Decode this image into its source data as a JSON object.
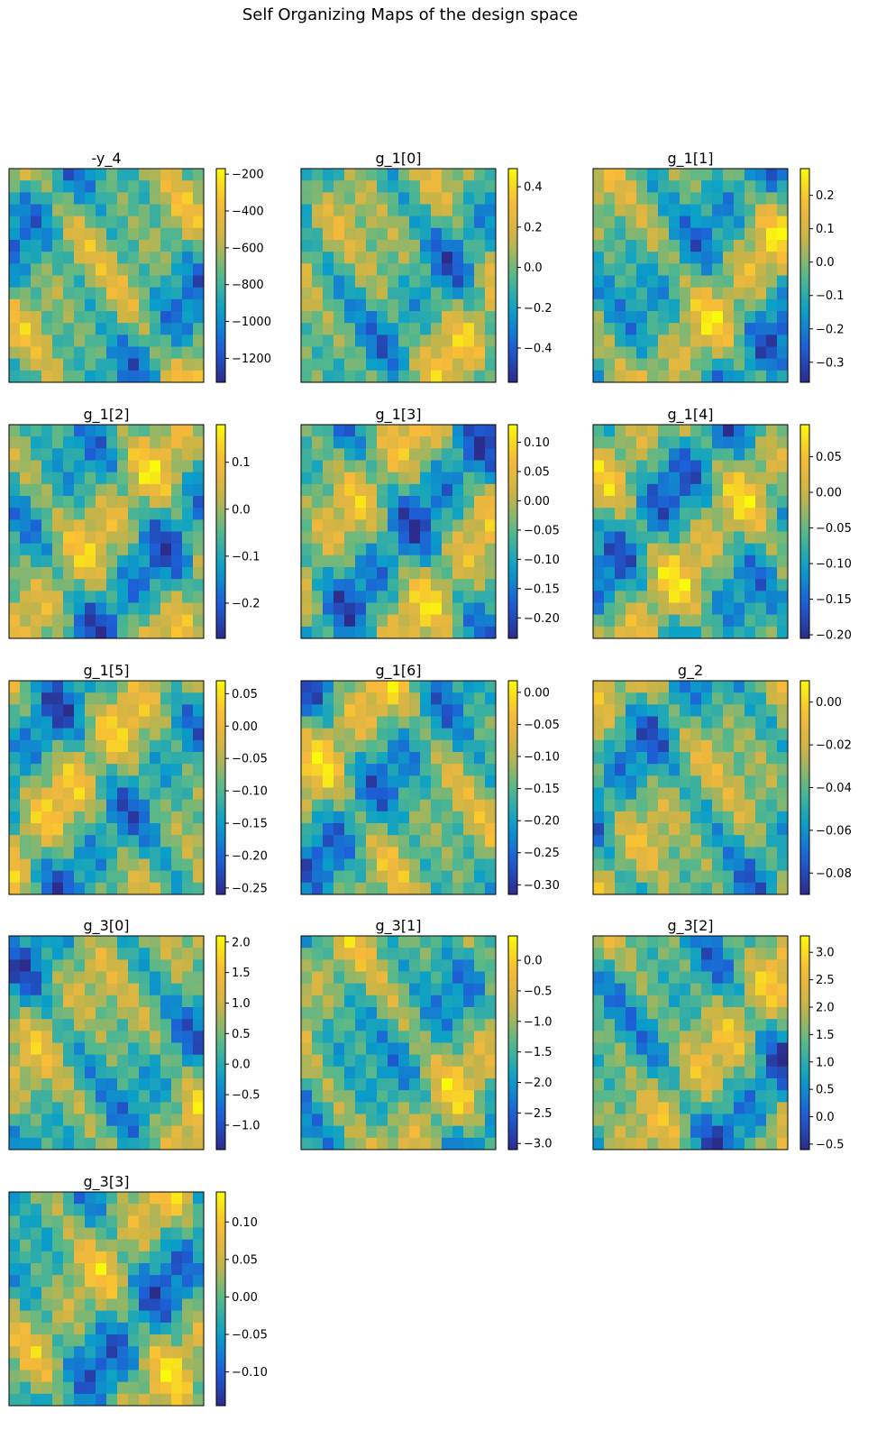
{
  "figure": {
    "title": "Self Organizing Maps of the design space"
  },
  "colormap": [
    "#2c2c8c",
    "#1d5fd6",
    "#0aa0c8",
    "#57b88a",
    "#c8b448",
    "#f7b93a",
    "#fafa0a"
  ],
  "chart_data": [
    {
      "type": "heatmap",
      "title": "-y_4",
      "grid": [
        18,
        18
      ],
      "range": [
        -1330,
        -170
      ],
      "ticks": [
        "-200",
        "-400",
        "-600",
        "-800",
        "-1000",
        "-1200"
      ],
      "tick_values": [
        -200,
        -400,
        -600,
        -800,
        -1000,
        -1200
      ]
    },
    {
      "type": "heatmap",
      "title": "g_1[0]",
      "grid": [
        18,
        18
      ],
      "range": [
        -0.57,
        0.49
      ],
      "ticks": [
        "0.4",
        "0.2",
        "0.0",
        "-0.2",
        "-0.4"
      ],
      "tick_values": [
        0.4,
        0.2,
        0.0,
        -0.2,
        -0.4
      ]
    },
    {
      "type": "heatmap",
      "title": "g_1[1]",
      "grid": [
        18,
        18
      ],
      "range": [
        -0.36,
        0.28
      ],
      "ticks": [
        "0.2",
        "0.1",
        "0.0",
        "-0.1",
        "-0.2",
        "-0.3"
      ],
      "tick_values": [
        0.2,
        0.1,
        0.0,
        -0.1,
        -0.2,
        -0.3
      ]
    },
    {
      "type": "heatmap",
      "title": "g_1[2]",
      "grid": [
        18,
        18
      ],
      "range": [
        -0.275,
        0.18
      ],
      "ticks": [
        "0.1",
        "0.0",
        "-0.1",
        "-0.2"
      ],
      "tick_values": [
        0.1,
        0.0,
        -0.1,
        -0.2
      ]
    },
    {
      "type": "heatmap",
      "title": "g_1[3]",
      "grid": [
        18,
        18
      ],
      "range": [
        -0.235,
        0.13
      ],
      "ticks": [
        "0.10",
        "0.05",
        "0.00",
        "-0.05",
        "-0.10",
        "-0.15",
        "-0.20"
      ],
      "tick_values": [
        0.1,
        0.05,
        0.0,
        -0.05,
        -0.1,
        -0.15,
        -0.2
      ]
    },
    {
      "type": "heatmap",
      "title": "g_1[4]",
      "grid": [
        18,
        18
      ],
      "range": [
        -0.205,
        0.095
      ],
      "ticks": [
        "0.05",
        "0.00",
        "-0.05",
        "-0.10",
        "-0.15",
        "-0.20"
      ],
      "tick_values": [
        0.05,
        0.0,
        -0.05,
        -0.1,
        -0.15,
        -0.2
      ]
    },
    {
      "type": "heatmap",
      "title": "g_1[5]",
      "grid": [
        18,
        18
      ],
      "range": [
        -0.26,
        0.07
      ],
      "ticks": [
        "0.05",
        "0.00",
        "-0.05",
        "-0.10",
        "-0.15",
        "-0.20",
        "-0.25"
      ],
      "tick_values": [
        0.05,
        0.0,
        -0.05,
        -0.1,
        -0.15,
        -0.2,
        -0.25
      ]
    },
    {
      "type": "heatmap",
      "title": "g_1[6]",
      "grid": [
        18,
        18
      ],
      "range": [
        -0.315,
        0.018
      ],
      "ticks": [
        "0.00",
        "-0.05",
        "-0.10",
        "-0.15",
        "-0.20",
        "-0.25",
        "-0.30"
      ],
      "tick_values": [
        0.0,
        -0.05,
        -0.1,
        -0.15,
        -0.2,
        -0.25,
        -0.3
      ]
    },
    {
      "type": "heatmap",
      "title": "g_2",
      "grid": [
        18,
        18
      ],
      "range": [
        -0.09,
        0.01
      ],
      "ticks": [
        "0.00",
        "-0.02",
        "-0.04",
        "-0.06",
        "-0.08"
      ],
      "tick_values": [
        0.0,
        -0.02,
        -0.04,
        -0.06,
        -0.08
      ]
    },
    {
      "type": "heatmap",
      "title": "g_3[0]",
      "grid": [
        18,
        18
      ],
      "range": [
        -1.4,
        2.1
      ],
      "ticks": [
        "2.0",
        "1.5",
        "1.0",
        "0.5",
        "0.0",
        "-0.5",
        "-1.0"
      ],
      "tick_values": [
        2.0,
        1.5,
        1.0,
        0.5,
        0.0,
        -0.5,
        -1.0
      ]
    },
    {
      "type": "heatmap",
      "title": "g_3[1]",
      "grid": [
        18,
        18
      ],
      "range": [
        -3.1,
        0.4
      ],
      "ticks": [
        "0.0",
        "-0.5",
        "-1.0",
        "-1.5",
        "-2.0",
        "-2.5",
        "-3.0"
      ],
      "tick_values": [
        0.0,
        -0.5,
        -1.0,
        -1.5,
        -2.0,
        -2.5,
        -3.0
      ]
    },
    {
      "type": "heatmap",
      "title": "g_3[2]",
      "grid": [
        18,
        18
      ],
      "range": [
        -0.6,
        3.3
      ],
      "ticks": [
        "3.0",
        "2.5",
        "2.0",
        "1.5",
        "1.0",
        "0.5",
        "0.0",
        "-0.5"
      ],
      "tick_values": [
        3.0,
        2.5,
        2.0,
        1.5,
        1.0,
        0.5,
        0.0,
        -0.5
      ]
    },
    {
      "type": "heatmap",
      "title": "g_3[3]",
      "grid": [
        18,
        18
      ],
      "range": [
        -0.145,
        0.14
      ],
      "ticks": [
        "0.10",
        "0.05",
        "0.00",
        "-0.05",
        "-0.10"
      ],
      "tick_values": [
        0.1,
        0.05,
        0.0,
        -0.05,
        -0.1
      ]
    }
  ]
}
